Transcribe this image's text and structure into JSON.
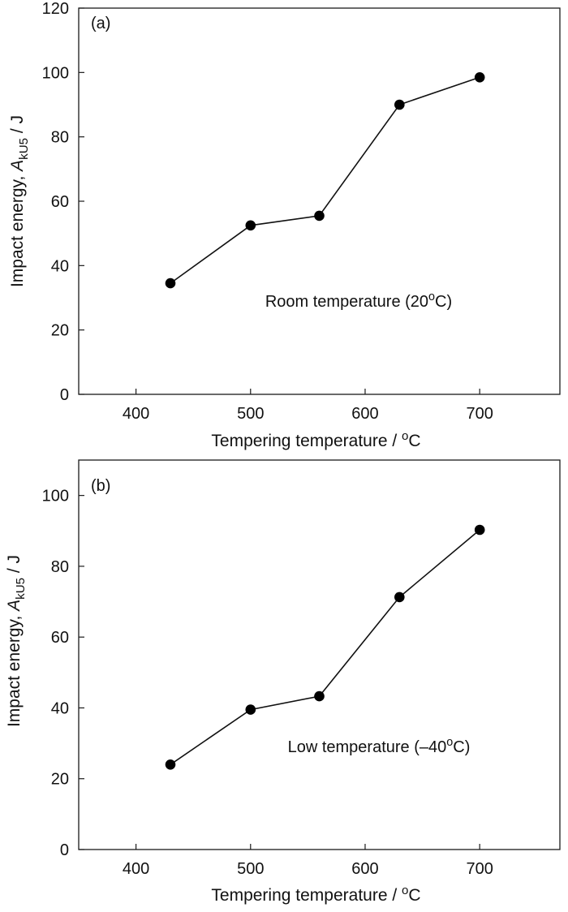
{
  "chart_data": [
    {
      "type": "line",
      "panel_label": "(a)",
      "annotation": "Room temperature (20°C)",
      "xlabel": "Tempering temperature / °C",
      "ylabel": "Impact energy, A_kU5 / J",
      "ylabel_parts": {
        "pre": "Impact energy, ",
        "var": "A",
        "sub": "kU5",
        "post": " / J"
      },
      "x": [
        430,
        500,
        560,
        630,
        700
      ],
      "series": [
        {
          "values": [
            34.5,
            52.5,
            55.5,
            90,
            98.5
          ]
        }
      ],
      "xlim": [
        350,
        770
      ],
      "ylim": [
        0,
        120
      ],
      "xticks": [
        "400",
        "500",
        "600",
        "700"
      ],
      "yticks": [
        "0",
        "20",
        "40",
        "60",
        "80",
        "100",
        "120"
      ],
      "grid": false,
      "colors": {
        "line": "#111111",
        "marker": "#000000"
      }
    },
    {
      "type": "line",
      "panel_label": "(b)",
      "annotation": "Low temperature (–40°C)",
      "xlabel": "Tempering temperature / °C",
      "ylabel": "Impact energy, A_kU5 / J",
      "ylabel_parts": {
        "pre": "Impact energy, ",
        "var": "A",
        "sub": "kU5",
        "post": " / J"
      },
      "x": [
        430,
        500,
        560,
        630,
        700
      ],
      "series": [
        {
          "values": [
            24,
            39.5,
            43.3,
            71.3,
            90.3
          ]
        }
      ],
      "xlim": [
        350,
        770
      ],
      "ylim": [
        0,
        110
      ],
      "xticks": [
        "400",
        "500",
        "600",
        "700"
      ],
      "yticks": [
        "0",
        "20",
        "40",
        "60",
        "80",
        "100"
      ],
      "grid": false,
      "colors": {
        "line": "#111111",
        "marker": "#000000"
      }
    }
  ]
}
